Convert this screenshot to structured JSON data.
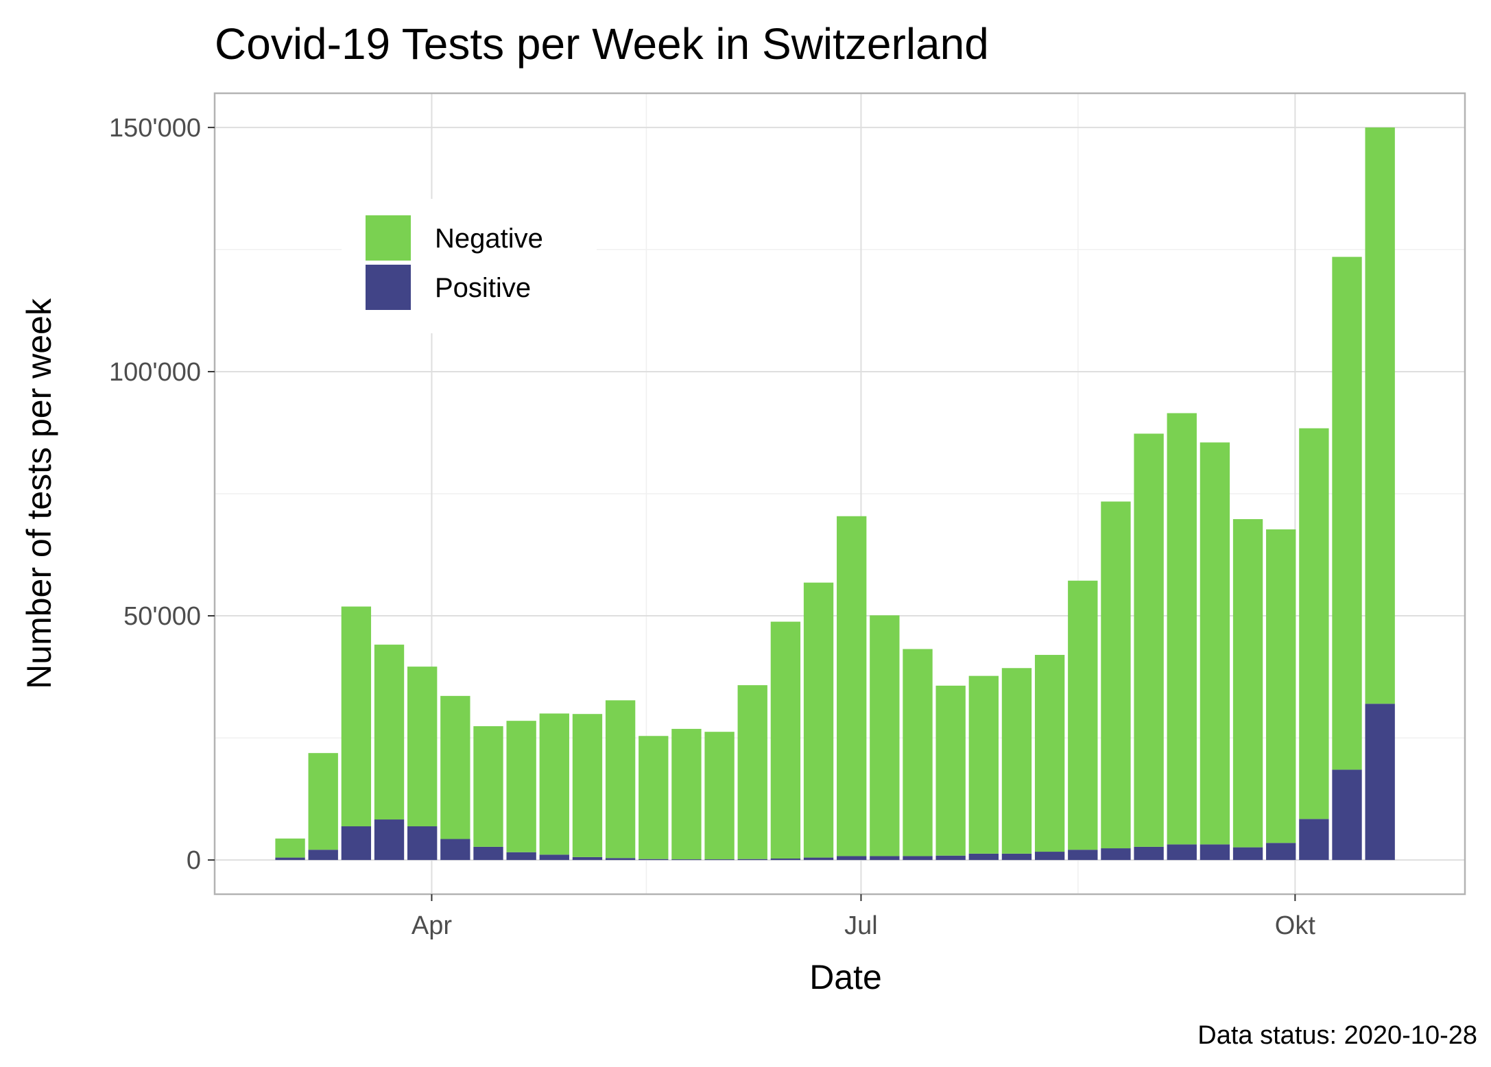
{
  "chart_data": {
    "type": "bar",
    "stacked": true,
    "title": "Covid-19 Tests per Week in Switzerland",
    "xlabel": "Date",
    "ylabel": "Number of tests per week",
    "caption": "Data status: 2020-10-28",
    "ylim": [
      -7000,
      157000
    ],
    "y_ticks": [
      0,
      50000,
      100000,
      150000
    ],
    "y_tick_labels": [
      "0",
      "50'000",
      "100'000",
      "150'000"
    ],
    "x_ticks": [
      {
        "label": "Apr",
        "date": "2020-04-01"
      },
      {
        "label": "Jul",
        "date": "2020-07-01"
      },
      {
        "label": "Okt",
        "date": "2020-10-01"
      }
    ],
    "grid": true,
    "legend_position": "top-left",
    "colors": {
      "Negative": "#7ad151",
      "Positive": "#414487"
    },
    "x": [
      "2020-03-02",
      "2020-03-09",
      "2020-03-16",
      "2020-03-23",
      "2020-03-30",
      "2020-04-06",
      "2020-04-13",
      "2020-04-20",
      "2020-04-27",
      "2020-05-04",
      "2020-05-11",
      "2020-05-18",
      "2020-05-25",
      "2020-06-01",
      "2020-06-08",
      "2020-06-15",
      "2020-06-22",
      "2020-06-29",
      "2020-07-06",
      "2020-07-13",
      "2020-07-20",
      "2020-07-27",
      "2020-08-03",
      "2020-08-10",
      "2020-08-17",
      "2020-08-24",
      "2020-08-31",
      "2020-09-07",
      "2020-09-14",
      "2020-09-21",
      "2020-09-28",
      "2020-10-05",
      "2020-10-12",
      "2020-10-19"
    ],
    "series": [
      {
        "name": "Positive",
        "values": [
          500,
          2100,
          6900,
          8300,
          6900,
          4300,
          2700,
          1600,
          1100,
          600,
          400,
          200,
          150,
          150,
          200,
          300,
          500,
          800,
          800,
          800,
          900,
          1300,
          1300,
          1700,
          2100,
          2400,
          2700,
          3200,
          3200,
          2600,
          3500,
          8400,
          18500,
          32000
        ]
      },
      {
        "name": "Negative",
        "values": [
          3900,
          19800,
          45000,
          35800,
          32700,
          29300,
          24700,
          26900,
          28900,
          29300,
          32300,
          25200,
          26700,
          26100,
          35600,
          48500,
          56300,
          69600,
          49300,
          42400,
          34800,
          36400,
          38000,
          40300,
          55100,
          71000,
          84600,
          88300,
          82300,
          67200,
          64200,
          80000,
          105000,
          118000
        ]
      }
    ],
    "legend": [
      {
        "label": "Negative",
        "color": "#7ad151"
      },
      {
        "label": "Positive",
        "color": "#414487"
      }
    ]
  }
}
